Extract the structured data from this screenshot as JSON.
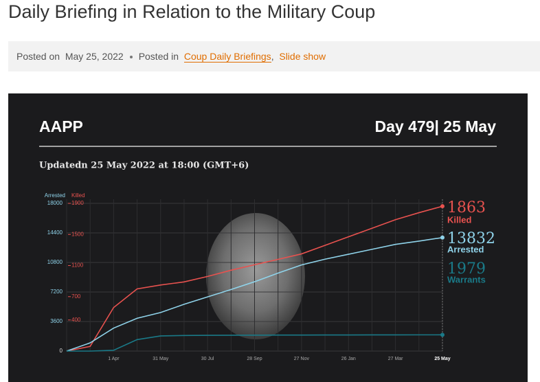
{
  "page": {
    "title": "Daily Briefing in Relation to the Military Coup",
    "posted_on_label": "Posted on",
    "date": "May 25, 2022",
    "posted_in_label": "Posted in",
    "links": [
      "Coup Daily Briefings",
      "Slide show"
    ],
    "separator": ","
  },
  "chart_data": {
    "type": "line",
    "title": "AAPP",
    "subtitle": "Day 479| 25 May",
    "annotation": "Updatedn 25 May 2022 at 18:00 (GMT+6)",
    "categories": [
      null,
      null,
      "1 Apr",
      null,
      "31 May",
      null,
      "30 Jul",
      null,
      "28 Sep",
      null,
      "27 Nov",
      null,
      "26 Jan",
      null,
      "27 Mar",
      null,
      "25 May"
    ],
    "series": [
      {
        "name": "Killed",
        "color": "#e8524f",
        "axis": "y2",
        "values": [
          0,
          60,
          560,
          800,
          850,
          890,
          960,
          1040,
          1110,
          1180,
          1250,
          1360,
          1470,
          1580,
          1690,
          1780,
          1863
        ]
      },
      {
        "name": "Arrested",
        "color": "#8fd3ea",
        "values": [
          0,
          1000,
          2800,
          4000,
          4700,
          5700,
          6600,
          7500,
          8450,
          9500,
          10500,
          11200,
          11800,
          12400,
          13000,
          13400,
          13832
        ]
      },
      {
        "name": "Warrants",
        "color": "#1a7a88",
        "values": [
          0,
          0,
          100,
          1400,
          1850,
          1900,
          1920,
          1930,
          1940,
          1950,
          1955,
          1960,
          1965,
          1970,
          1975,
          1977,
          1979
        ]
      }
    ],
    "ylim": [
      0,
      18000
    ],
    "yticks": [
      0,
      3600,
      7200,
      10800,
      14400,
      18000
    ],
    "y2lim": [
      0,
      1900
    ],
    "y2ticks": [
      400,
      700,
      1100,
      1500,
      1900
    ],
    "grid": true
  }
}
